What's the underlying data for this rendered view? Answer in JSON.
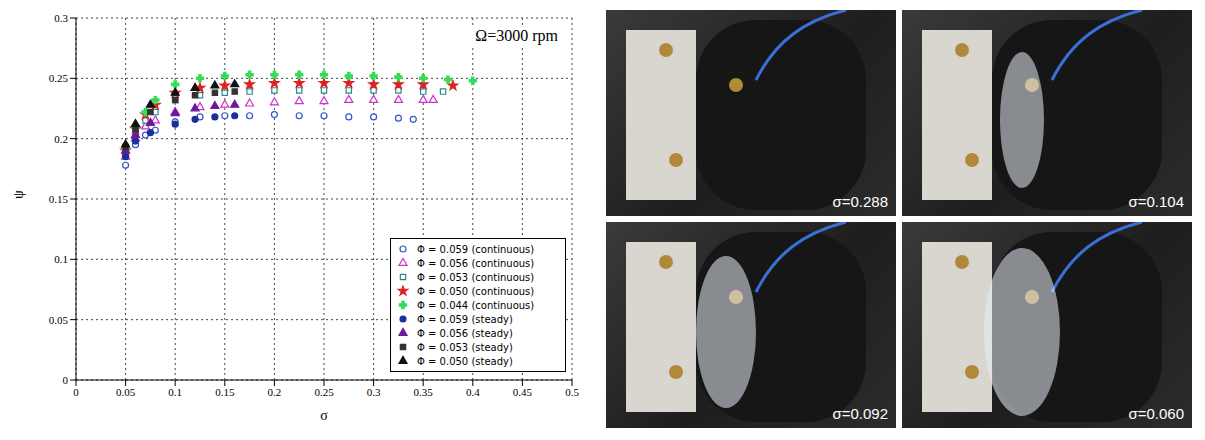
{
  "chart_data": {
    "type": "scatter",
    "annotation": "Ω=3000 rpm",
    "xlabel": "σ",
    "ylabel": "ψ",
    "xlim": [
      0,
      0.5
    ],
    "xticks": [
      0,
      0.05,
      0.1,
      0.15,
      0.2,
      0.25,
      0.3,
      0.35,
      0.4,
      0.45,
      0.5
    ],
    "ylim": [
      0,
      0.3
    ],
    "yticks": [
      0,
      0.05,
      0.1,
      0.15,
      0.2,
      0.25,
      0.3
    ],
    "grid": true,
    "legend": "lower right",
    "series": [
      {
        "name": "Φ = 0.059 (continuous)",
        "color": "#3355cc",
        "marker": "open-circle",
        "x": [
          0.05,
          0.06,
          0.07,
          0.08,
          0.1,
          0.125,
          0.15,
          0.175,
          0.2,
          0.225,
          0.25,
          0.275,
          0.3,
          0.325,
          0.34
        ],
        "values": [
          0.178,
          0.195,
          0.203,
          0.207,
          0.214,
          0.218,
          0.219,
          0.219,
          0.22,
          0.219,
          0.219,
          0.218,
          0.218,
          0.217,
          0.216
        ]
      },
      {
        "name": "Φ = 0.056 (continuous)",
        "color": "#cc33cc",
        "marker": "open-triangle",
        "x": [
          0.05,
          0.06,
          0.07,
          0.08,
          0.1,
          0.125,
          0.15,
          0.175,
          0.2,
          0.225,
          0.25,
          0.275,
          0.3,
          0.325,
          0.35,
          0.36
        ],
        "values": [
          0.185,
          0.2,
          0.21,
          0.215,
          0.222,
          0.226,
          0.228,
          0.229,
          0.23,
          0.231,
          0.231,
          0.232,
          0.232,
          0.232,
          0.232,
          0.232
        ]
      },
      {
        "name": "Φ = 0.053 (continuous)",
        "color": "#2a8a8a",
        "marker": "open-square",
        "x": [
          0.05,
          0.06,
          0.07,
          0.08,
          0.1,
          0.125,
          0.15,
          0.175,
          0.2,
          0.225,
          0.25,
          0.275,
          0.3,
          0.325,
          0.35,
          0.37
        ],
        "values": [
          0.19,
          0.205,
          0.215,
          0.222,
          0.232,
          0.236,
          0.238,
          0.239,
          0.24,
          0.24,
          0.24,
          0.24,
          0.24,
          0.24,
          0.239,
          0.239
        ]
      },
      {
        "name": "Φ = 0.050 (continuous)",
        "color": "#dd2222",
        "marker": "star",
        "x": [
          0.05,
          0.06,
          0.07,
          0.08,
          0.1,
          0.125,
          0.15,
          0.175,
          0.2,
          0.225,
          0.25,
          0.275,
          0.3,
          0.325,
          0.35,
          0.38
        ],
        "values": [
          0.19,
          0.208,
          0.22,
          0.228,
          0.238,
          0.242,
          0.244,
          0.245,
          0.246,
          0.246,
          0.246,
          0.246,
          0.245,
          0.245,
          0.245,
          0.244
        ]
      },
      {
        "name": "Φ = 0.044 (continuous)",
        "color": "#33dd55",
        "marker": "cross",
        "x": [
          0.05,
          0.06,
          0.07,
          0.08,
          0.1,
          0.125,
          0.15,
          0.175,
          0.2,
          0.225,
          0.25,
          0.275,
          0.3,
          0.325,
          0.35,
          0.375,
          0.4
        ],
        "values": [
          0.192,
          0.21,
          0.222,
          0.232,
          0.245,
          0.25,
          0.252,
          0.253,
          0.253,
          0.253,
          0.253,
          0.252,
          0.252,
          0.251,
          0.25,
          0.249,
          0.248
        ]
      },
      {
        "name": "Φ = 0.059 (steady)",
        "color": "#1a2f99",
        "marker": "circle",
        "x": [
          0.05,
          0.06,
          0.075,
          0.1,
          0.12,
          0.14,
          0.16
        ],
        "values": [
          0.185,
          0.198,
          0.205,
          0.212,
          0.216,
          0.218,
          0.219
        ]
      },
      {
        "name": "Φ = 0.056 (steady)",
        "color": "#6a1a9a",
        "marker": "triangle",
        "x": [
          0.05,
          0.06,
          0.075,
          0.1,
          0.12,
          0.14,
          0.16
        ],
        "values": [
          0.19,
          0.203,
          0.213,
          0.221,
          0.225,
          0.227,
          0.228
        ]
      },
      {
        "name": "Φ = 0.053 (steady)",
        "color": "#333333",
        "marker": "square",
        "x": [
          0.05,
          0.06,
          0.075,
          0.1,
          0.12,
          0.14,
          0.16
        ],
        "values": [
          0.193,
          0.208,
          0.222,
          0.232,
          0.236,
          0.238,
          0.239
        ]
      },
      {
        "name": "Φ = 0.050 (steady)",
        "color": "#111111",
        "marker": "triangle",
        "x": [
          0.05,
          0.06,
          0.075,
          0.1,
          0.12,
          0.14,
          0.16
        ],
        "values": [
          0.195,
          0.212,
          0.228,
          0.238,
          0.242,
          0.244,
          0.245
        ]
      }
    ]
  },
  "photos": [
    {
      "label": "σ=0.288"
    },
    {
      "label": "σ=0.104"
    },
    {
      "label": "σ=0.092"
    },
    {
      "label": "σ=0.060"
    }
  ]
}
